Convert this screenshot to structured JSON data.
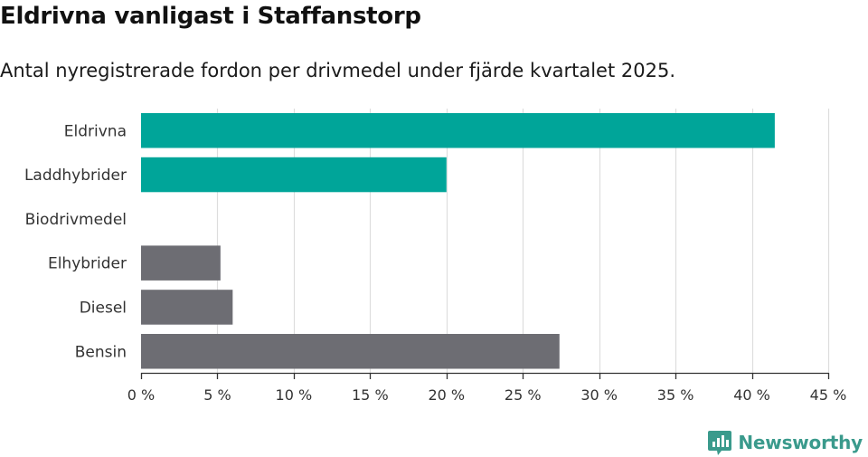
{
  "header": {
    "title": "Eldrivna vanligast i Staffanstorp",
    "subtitle": "Antal nyregistrerade fordon per drivmedel under fjärde kvartalet 2025."
  },
  "chart_data": {
    "type": "bar",
    "orientation": "horizontal",
    "title": "Eldrivna vanligast i Staffanstorp",
    "subtitle": "Antal nyregistrerade fordon per drivmedel under fjärde kvartalet 2025.",
    "xlabel": "",
    "ylabel": "",
    "categories": [
      "Eldrivna",
      "Laddhybrider",
      "Biodrivmedel",
      "Elhybrider",
      "Diesel",
      "Bensin"
    ],
    "values": [
      41.5,
      20.0,
      0,
      5.2,
      6.0,
      27.4
    ],
    "bar_colors": [
      "#00a599",
      "#00a599",
      "#00a599",
      "#6d6d73",
      "#6d6d73",
      "#6d6d73"
    ],
    "xlim": [
      0,
      45
    ],
    "x_ticks": [
      0,
      5,
      10,
      15,
      20,
      25,
      30,
      35,
      40,
      45
    ],
    "x_tick_labels": [
      "0 %",
      "5 %",
      "10 %",
      "15 %",
      "20 %",
      "25 %",
      "30 %",
      "35 %",
      "40 %",
      "45 %"
    ],
    "grid": true
  },
  "colors": {
    "green": "#00a599",
    "gray": "#6d6d73",
    "grid": "#dddddd",
    "axis": "#333333"
  },
  "brand": {
    "name": "Newsworthy",
    "icon": "newsworthy-logo-icon"
  }
}
